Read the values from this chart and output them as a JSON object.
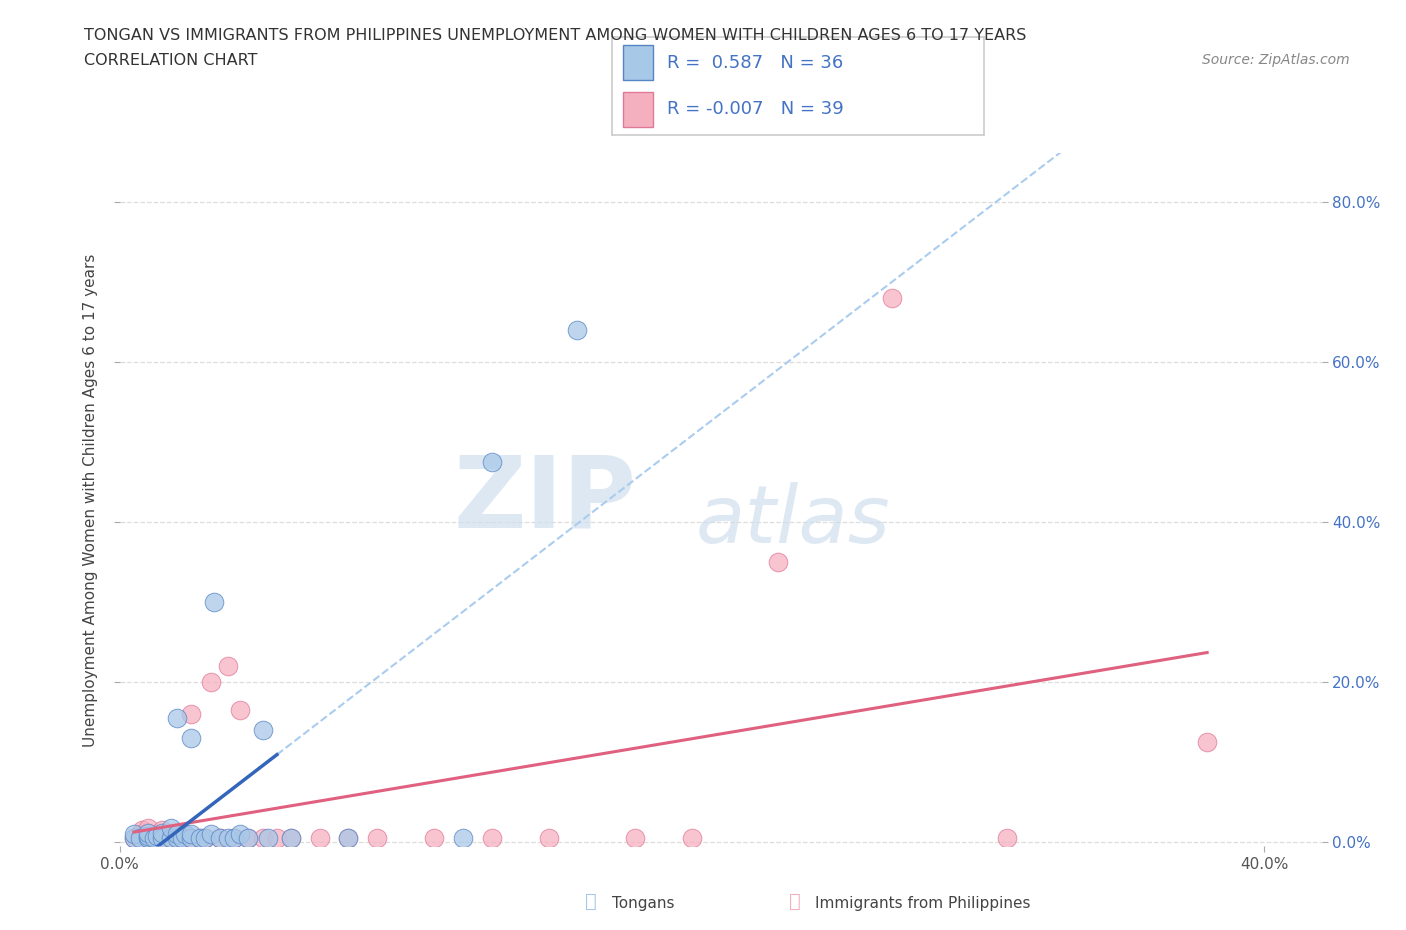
{
  "title": "TONGAN VS IMMIGRANTS FROM PHILIPPINES UNEMPLOYMENT AMONG WOMEN WITH CHILDREN AGES 6 TO 17 YEARS",
  "subtitle": "CORRELATION CHART",
  "source": "Source: ZipAtlas.com",
  "ylabel": "Unemployment Among Women with Children Ages 6 to 17 years",
  "xlim": [
    0.0,
    0.42
  ],
  "ylim": [
    -0.005,
    0.86
  ],
  "x_ticks": [
    0.0,
    0.4
  ],
  "y_ticks": [
    0.0,
    0.2,
    0.4,
    0.6,
    0.8
  ],
  "blue_R": 0.587,
  "blue_N": 36,
  "pink_R": -0.007,
  "pink_N": 39,
  "blue_dot_color": "#a8c8e8",
  "blue_edge_color": "#5585c5",
  "blue_line_color": "#3366bb",
  "pink_dot_color": "#f5b0c0",
  "pink_edge_color": "#e07898",
  "pink_line_color": "#e06080",
  "dash_color": "#aaccee",
  "grid_color": "#dddddd",
  "background_color": "#ffffff",
  "blue_scatter_x": [
    0.005,
    0.005,
    0.007,
    0.01,
    0.01,
    0.01,
    0.012,
    0.013,
    0.015,
    0.015,
    0.018,
    0.018,
    0.02,
    0.02,
    0.02,
    0.022,
    0.023,
    0.025,
    0.025,
    0.025,
    0.028,
    0.03,
    0.032,
    0.033,
    0.035,
    0.038,
    0.04,
    0.042,
    0.045,
    0.05,
    0.052,
    0.06,
    0.08,
    0.12,
    0.13,
    0.16
  ],
  "blue_scatter_y": [
    0.005,
    0.01,
    0.005,
    0.005,
    0.008,
    0.012,
    0.005,
    0.008,
    0.005,
    0.012,
    0.005,
    0.018,
    0.005,
    0.01,
    0.155,
    0.005,
    0.01,
    0.005,
    0.01,
    0.13,
    0.005,
    0.005,
    0.01,
    0.3,
    0.005,
    0.005,
    0.005,
    0.01,
    0.005,
    0.14,
    0.005,
    0.005,
    0.005,
    0.005,
    0.475,
    0.64
  ],
  "pink_scatter_x": [
    0.005,
    0.007,
    0.008,
    0.01,
    0.01,
    0.012,
    0.013,
    0.015,
    0.015,
    0.018,
    0.02,
    0.02,
    0.02,
    0.022,
    0.025,
    0.025,
    0.028,
    0.03,
    0.032,
    0.035,
    0.038,
    0.04,
    0.042,
    0.045,
    0.05,
    0.055,
    0.06,
    0.07,
    0.08,
    0.09,
    0.11,
    0.13,
    0.15,
    0.18,
    0.2,
    0.23,
    0.27,
    0.31,
    0.38
  ],
  "pink_scatter_y": [
    0.005,
    0.01,
    0.015,
    0.005,
    0.018,
    0.005,
    0.01,
    0.005,
    0.015,
    0.005,
    0.008,
    0.012,
    0.005,
    0.005,
    0.16,
    0.005,
    0.005,
    0.005,
    0.2,
    0.005,
    0.22,
    0.005,
    0.165,
    0.005,
    0.005,
    0.005,
    0.005,
    0.005,
    0.005,
    0.005,
    0.005,
    0.005,
    0.005,
    0.005,
    0.005,
    0.35,
    0.68,
    0.005,
    0.125
  ]
}
